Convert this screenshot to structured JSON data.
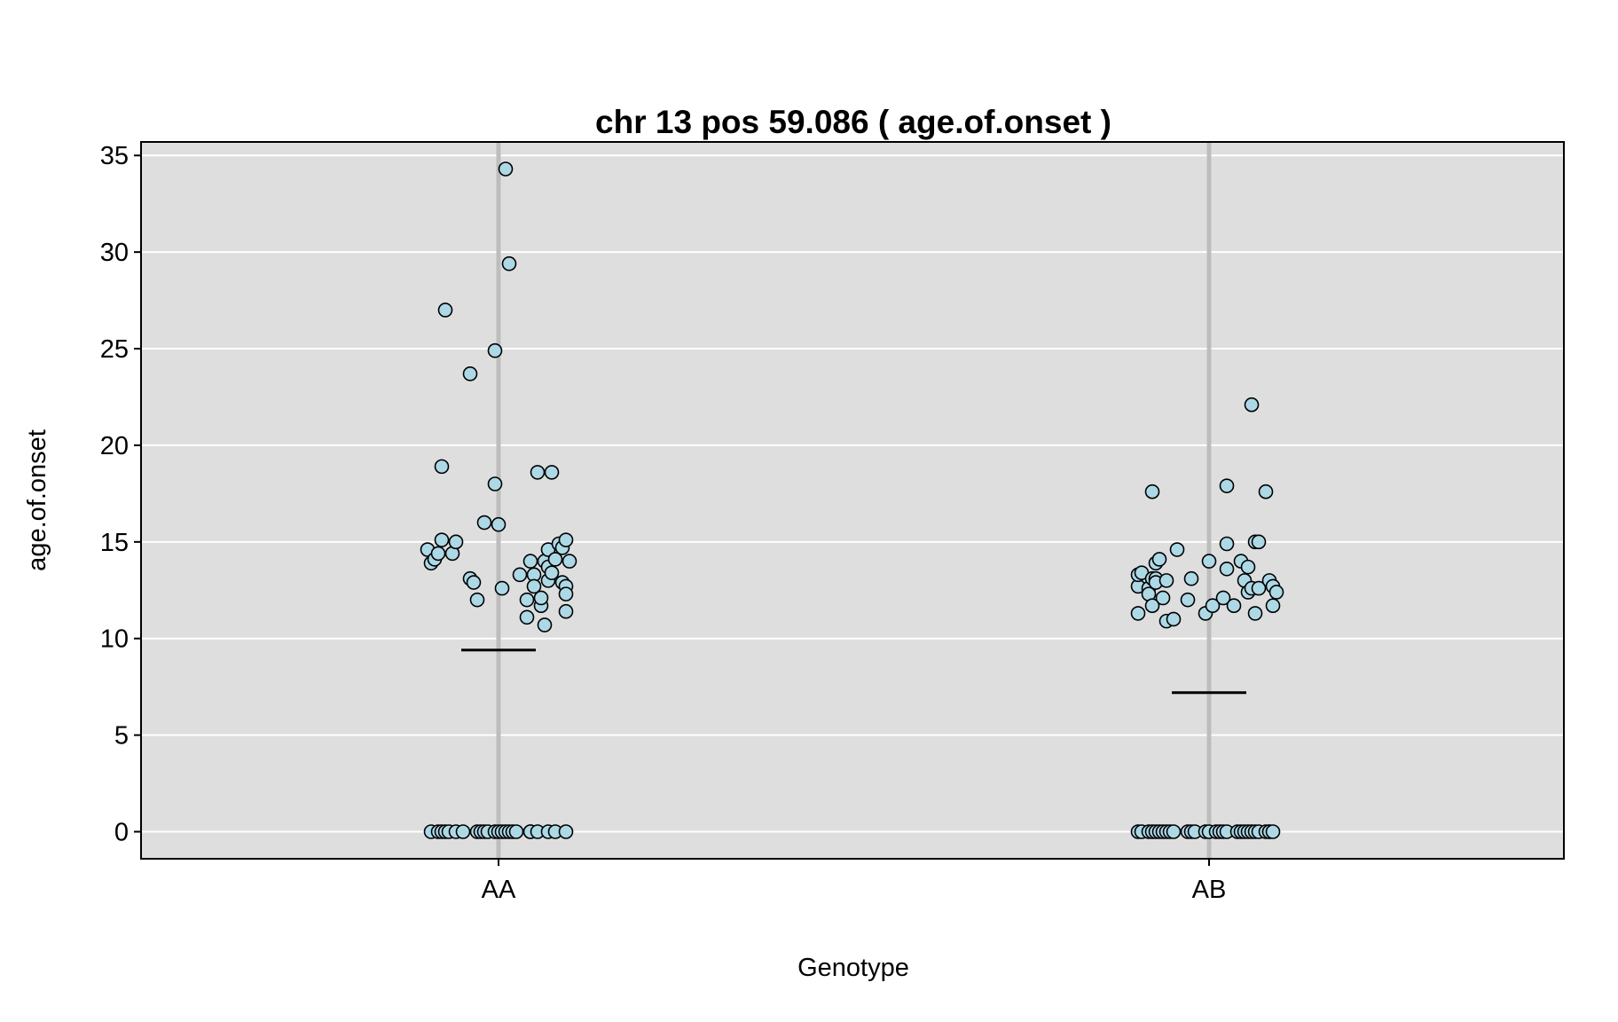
{
  "chart_data": {
    "type": "scatter",
    "title": "chr 13 pos 59.086 ( age.of.onset )",
    "xlabel": "Genotype",
    "ylabel": "age.of.onset",
    "categories": [
      "AA",
      "AB"
    ],
    "ylim": [
      -1.4,
      35.7
    ],
    "yticks": [
      0,
      5,
      10,
      15,
      20,
      25,
      30,
      35
    ],
    "grid": true,
    "colors": {
      "panel": "#dedede",
      "grid": "#ffffff",
      "category_line": "#bdbdbd",
      "point_fill": "#add8e6",
      "point_stroke": "#000000",
      "mean_line": "#000000"
    },
    "means": [
      9.4,
      7.2
    ],
    "series": [
      {
        "category": "AA",
        "points": [
          [
            -0.2,
            14.6
          ],
          [
            -0.19,
            13.9
          ],
          [
            -0.18,
            14.1
          ],
          [
            -0.17,
            14.4
          ],
          [
            -0.16,
            15.1
          ],
          [
            -0.16,
            18.9
          ],
          [
            -0.15,
            27.0
          ],
          [
            -0.13,
            14.4
          ],
          [
            -0.12,
            15.0
          ],
          [
            -0.08,
            23.7
          ],
          [
            -0.08,
            13.1
          ],
          [
            -0.07,
            12.9
          ],
          [
            -0.06,
            12.0
          ],
          [
            -0.04,
            16.0
          ],
          [
            -0.01,
            24.9
          ],
          [
            -0.01,
            18.0
          ],
          [
            0.0,
            15.9
          ],
          [
            0.01,
            12.6
          ],
          [
            0.03,
            29.4
          ],
          [
            0.02,
            34.3
          ],
          [
            0.06,
            13.3
          ],
          [
            0.08,
            11.1
          ],
          [
            0.08,
            12.0
          ],
          [
            0.09,
            14.0
          ],
          [
            0.1,
            13.3
          ],
          [
            0.1,
            12.7
          ],
          [
            0.11,
            18.6
          ],
          [
            0.12,
            11.7
          ],
          [
            0.12,
            12.1
          ],
          [
            0.13,
            10.7
          ],
          [
            0.13,
            14.0
          ],
          [
            0.14,
            13.7
          ],
          [
            0.14,
            14.6
          ],
          [
            0.14,
            13.0
          ],
          [
            0.15,
            13.4
          ],
          [
            0.15,
            18.6
          ],
          [
            0.16,
            14.1
          ],
          [
            0.17,
            14.9
          ],
          [
            0.18,
            14.7
          ],
          [
            0.18,
            12.9
          ],
          [
            0.19,
            15.1
          ],
          [
            0.19,
            12.7
          ],
          [
            0.19,
            11.4
          ],
          [
            0.19,
            12.3
          ],
          [
            0.2,
            14.0
          ],
          [
            -0.19,
            0
          ],
          [
            -0.17,
            0
          ],
          [
            -0.16,
            0
          ],
          [
            -0.15,
            0
          ],
          [
            -0.14,
            0
          ],
          [
            -0.12,
            0
          ],
          [
            -0.1,
            0
          ],
          [
            -0.06,
            0
          ],
          [
            -0.05,
            0
          ],
          [
            -0.04,
            0
          ],
          [
            -0.03,
            0
          ],
          [
            -0.01,
            0
          ],
          [
            0.0,
            0
          ],
          [
            0.01,
            0
          ],
          [
            0.02,
            0
          ],
          [
            0.03,
            0
          ],
          [
            0.04,
            0
          ],
          [
            0.05,
            0
          ],
          [
            0.09,
            0
          ],
          [
            0.09,
            0
          ],
          [
            0.11,
            0
          ],
          [
            0.14,
            0
          ],
          [
            0.16,
            0
          ],
          [
            0.19,
            0
          ]
        ]
      },
      {
        "category": "AB",
        "points": [
          [
            -0.2,
            11.3
          ],
          [
            -0.2,
            12.7
          ],
          [
            -0.2,
            13.3
          ],
          [
            -0.19,
            13.4
          ],
          [
            -0.17,
            12.6
          ],
          [
            -0.17,
            12.3
          ],
          [
            -0.16,
            13.1
          ],
          [
            -0.16,
            17.6
          ],
          [
            -0.16,
            11.7
          ],
          [
            -0.15,
            13.9
          ],
          [
            -0.15,
            13.1
          ],
          [
            -0.15,
            12.9
          ],
          [
            -0.14,
            14.1
          ],
          [
            -0.13,
            12.1
          ],
          [
            -0.12,
            13.0
          ],
          [
            -0.12,
            10.9
          ],
          [
            -0.1,
            11.0
          ],
          [
            -0.09,
            14.6
          ],
          [
            -0.06,
            12.0
          ],
          [
            -0.05,
            13.1
          ],
          [
            -0.01,
            11.3
          ],
          [
            0.0,
            14.0
          ],
          [
            0.01,
            11.7
          ],
          [
            0.04,
            12.1
          ],
          [
            0.05,
            13.6
          ],
          [
            0.05,
            14.9
          ],
          [
            0.05,
            17.9
          ],
          [
            0.07,
            11.7
          ],
          [
            0.09,
            14.0
          ],
          [
            0.1,
            13.0
          ],
          [
            0.11,
            12.4
          ],
          [
            0.11,
            13.7
          ],
          [
            0.12,
            12.6
          ],
          [
            0.12,
            22.1
          ],
          [
            0.13,
            11.3
          ],
          [
            0.13,
            15.0
          ],
          [
            0.14,
            15.0
          ],
          [
            0.14,
            12.6
          ],
          [
            0.16,
            17.6
          ],
          [
            0.17,
            13.0
          ],
          [
            0.18,
            11.7
          ],
          [
            0.18,
            12.7
          ],
          [
            0.19,
            12.4
          ],
          [
            -0.2,
            0
          ],
          [
            -0.19,
            0
          ],
          [
            -0.17,
            0
          ],
          [
            -0.16,
            0
          ],
          [
            -0.15,
            0
          ],
          [
            -0.14,
            0
          ],
          [
            -0.13,
            0
          ],
          [
            -0.12,
            0
          ],
          [
            -0.11,
            0
          ],
          [
            -0.1,
            0
          ],
          [
            -0.06,
            0
          ],
          [
            -0.05,
            0
          ],
          [
            -0.04,
            0
          ],
          [
            -0.01,
            0
          ],
          [
            0.0,
            0
          ],
          [
            0.02,
            0
          ],
          [
            0.03,
            0
          ],
          [
            0.04,
            0
          ],
          [
            0.05,
            0
          ],
          [
            0.08,
            0
          ],
          [
            0.09,
            0
          ],
          [
            0.1,
            0
          ],
          [
            0.11,
            0
          ],
          [
            0.12,
            0
          ],
          [
            0.13,
            0
          ],
          [
            0.14,
            0
          ],
          [
            0.16,
            0
          ],
          [
            0.17,
            0
          ],
          [
            0.17,
            0
          ],
          [
            0.18,
            0
          ]
        ]
      }
    ]
  }
}
